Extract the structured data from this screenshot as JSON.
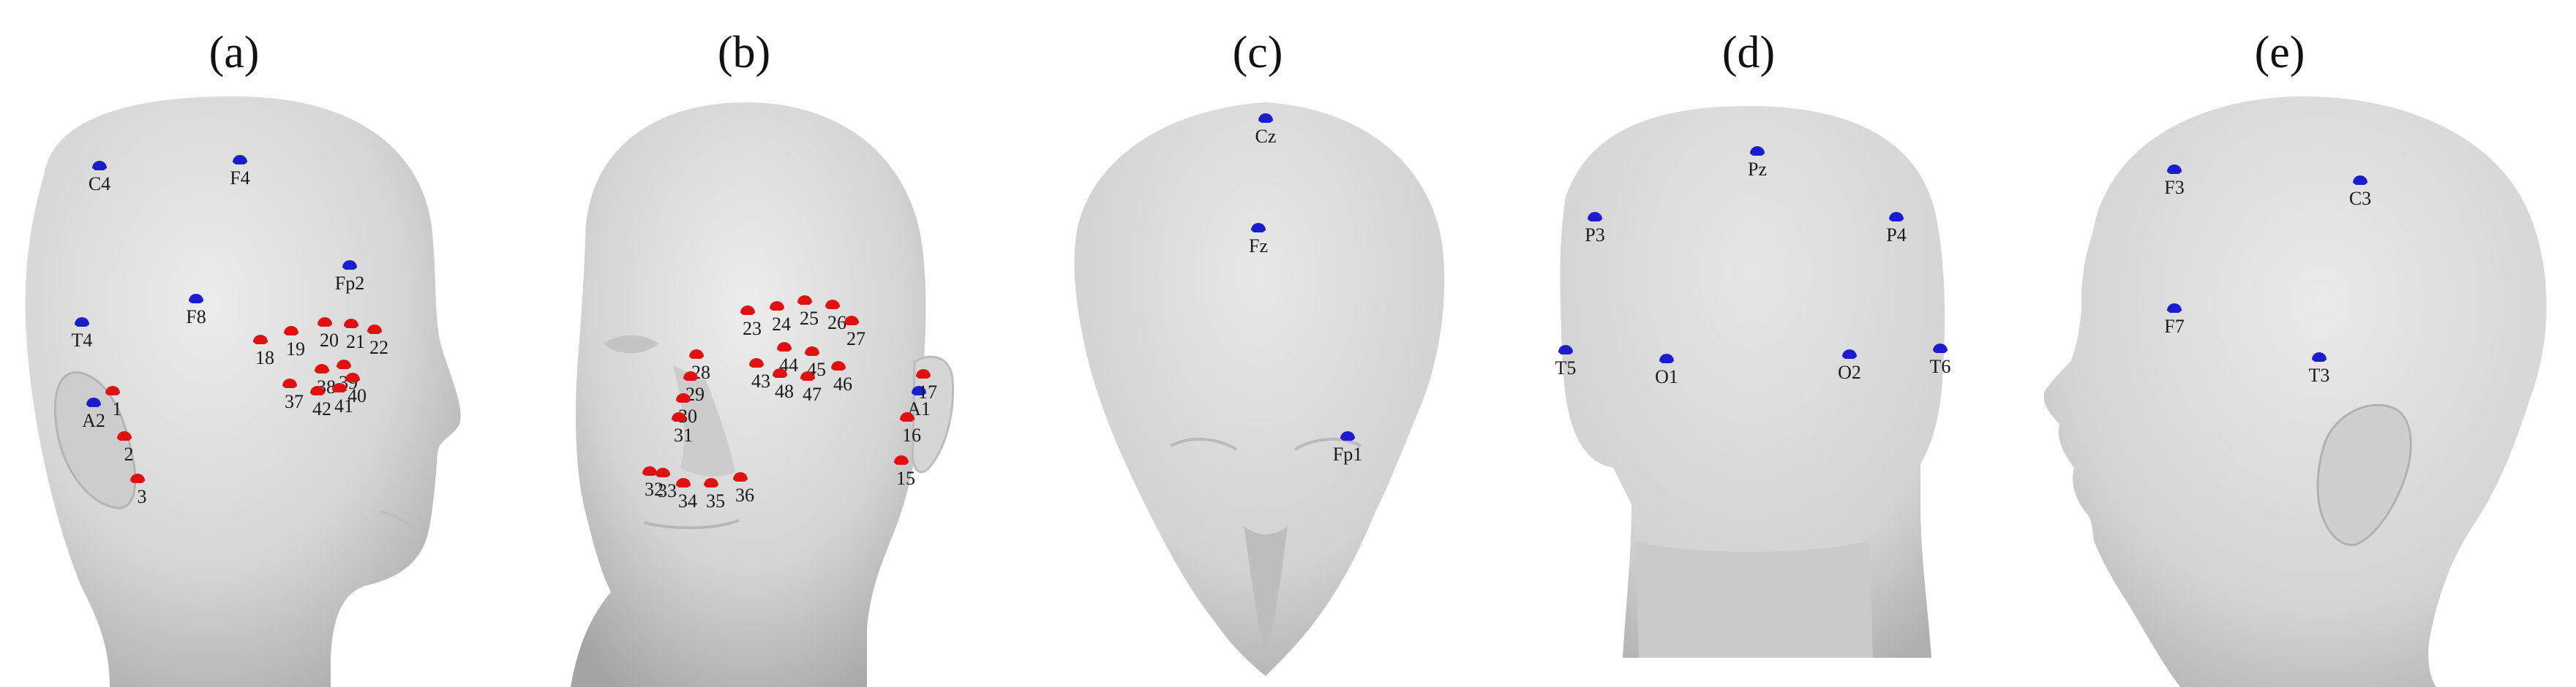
{
  "figure": {
    "panels": [
      {
        "id": "a",
        "title": "(a)",
        "electrodes": [
          {
            "name": "C4",
            "color": "blue"
          },
          {
            "name": "F4",
            "color": "blue"
          },
          {
            "name": "Fp2",
            "color": "blue"
          },
          {
            "name": "F8",
            "color": "blue"
          },
          {
            "name": "T4",
            "color": "blue"
          },
          {
            "name": "A2",
            "color": "blue"
          }
        ],
        "landmarks": [
          "1",
          "2",
          "3",
          "18",
          "19",
          "20",
          "21",
          "22",
          "37",
          "38",
          "39",
          "40",
          "41",
          "42"
        ]
      },
      {
        "id": "b",
        "title": "(b)",
        "electrodes": [
          {
            "name": "A1",
            "color": "blue"
          }
        ],
        "landmarks": [
          "15",
          "16",
          "17",
          "23",
          "24",
          "25",
          "26",
          "27",
          "28",
          "29",
          "30",
          "31",
          "32",
          "33",
          "34",
          "35",
          "36",
          "43",
          "44",
          "45",
          "46",
          "47",
          "48"
        ]
      },
      {
        "id": "c",
        "title": "(c)",
        "electrodes": [
          {
            "name": "Cz",
            "color": "blue"
          },
          {
            "name": "Fz",
            "color": "blue"
          },
          {
            "name": "Fp1",
            "color": "blue"
          }
        ],
        "landmarks": []
      },
      {
        "id": "d",
        "title": "(d)",
        "electrodes": [
          {
            "name": "Pz",
            "color": "blue"
          },
          {
            "name": "P3",
            "color": "blue"
          },
          {
            "name": "P4",
            "color": "blue"
          },
          {
            "name": "T5",
            "color": "blue"
          },
          {
            "name": "O1",
            "color": "blue"
          },
          {
            "name": "O2",
            "color": "blue"
          },
          {
            "name": "T6",
            "color": "blue"
          }
        ],
        "landmarks": []
      },
      {
        "id": "e",
        "title": "(e)",
        "electrodes": [
          {
            "name": "F3",
            "color": "blue"
          },
          {
            "name": "C3",
            "color": "blue"
          },
          {
            "name": "F7",
            "color": "blue"
          },
          {
            "name": "T3",
            "color": "blue"
          }
        ],
        "landmarks": []
      }
    ],
    "colors": {
      "electrode": "#1c1ccf",
      "landmark": "#e01010",
      "head_light": "#e6e6e6",
      "head_dark": "#9c9c9c",
      "background": "#ffffff"
    }
  }
}
